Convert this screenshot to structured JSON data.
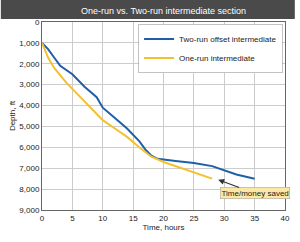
{
  "chart_data": {
    "type": "line",
    "title": "One-run vs. Two-run intermediate section",
    "x_label": "Time, hours",
    "y_label": "Depth, ft",
    "series": [
      {
        "name": "Two-run offset intermediate",
        "color": "#1f5fa8",
        "x": [
          0,
          1,
          2,
          3,
          5,
          7,
          9,
          10,
          12,
          14,
          16,
          17,
          18,
          19,
          22,
          25,
          28,
          30,
          32,
          35
        ],
        "values": [
          1000,
          1300,
          1700,
          2100,
          2500,
          3100,
          3600,
          4100,
          4600,
          5100,
          5700,
          6100,
          6400,
          6550,
          6650,
          6750,
          6900,
          7100,
          7300,
          7500
        ]
      },
      {
        "name": "One-run intermediate",
        "color": "#f2c12e",
        "x": [
          0,
          1,
          2,
          4,
          6,
          8,
          10,
          12,
          14,
          16,
          18,
          20,
          22,
          24,
          26,
          28
        ],
        "values": [
          1000,
          1700,
          2200,
          2900,
          3500,
          4100,
          4700,
          5100,
          5500,
          6000,
          6450,
          6700,
          6900,
          7100,
          7300,
          7500
        ]
      }
    ],
    "annotations": [
      {
        "text": "Time/money saved",
        "x": 35,
        "y": 8200,
        "arrow_x": 29,
        "arrow_y": 7550
      }
    ],
    "xlim": [
      0,
      40
    ],
    "xticks": [
      0,
      5,
      10,
      15,
      20,
      25,
      30,
      35,
      40
    ],
    "ylim": [
      9000,
      0
    ],
    "yticks": [
      0,
      {
        "value": 1000,
        "label": "1,000"
      },
      {
        "value": 2000,
        "label": "2,000"
      },
      {
        "value": 3000,
        "label": "3,000"
      },
      {
        "value": 4000,
        "label": "4,000"
      },
      {
        "value": 5000,
        "label": "5,000"
      },
      {
        "value": 6000,
        "label": "6,000"
      },
      {
        "value": 7000,
        "label": "7,000"
      },
      {
        "value": 8000,
        "label": "8,000"
      },
      {
        "value": 9000,
        "label": "9,000"
      }
    ],
    "grid": true,
    "legend": "top-right"
  }
}
